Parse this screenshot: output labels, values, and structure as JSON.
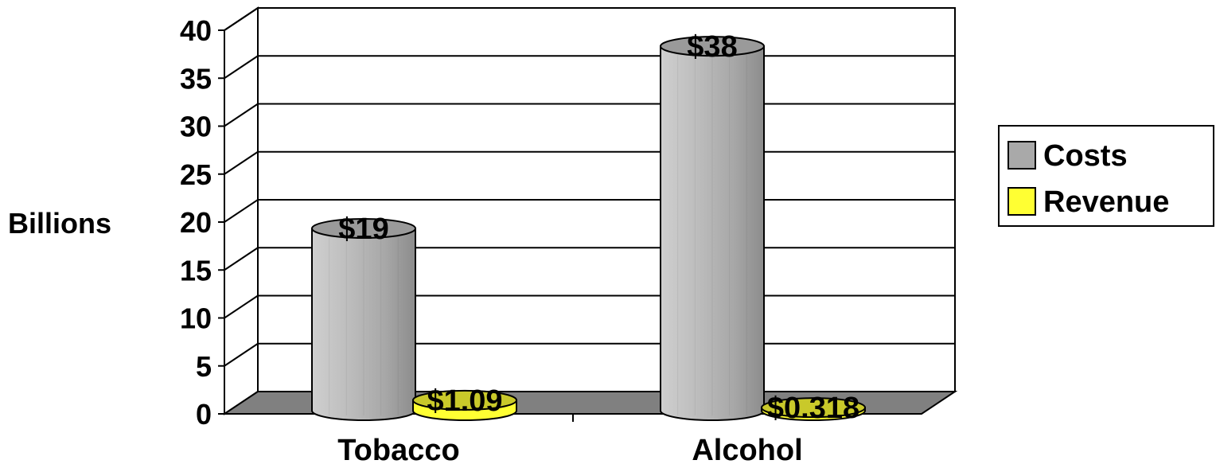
{
  "chart_data": {
    "type": "bar",
    "style": "3d-cylinder",
    "categories": [
      "Tobacco",
      "Alcohol"
    ],
    "series": [
      {
        "name": "Costs",
        "values": [
          19,
          38
        ],
        "labels": [
          "$19",
          "$38"
        ],
        "color": "#a9a9a9"
      },
      {
        "name": "Revenue",
        "values": [
          1.09,
          0.318
        ],
        "labels": [
          "$1.09",
          "$0.318"
        ],
        "color": "#ffff33"
      }
    ],
    "ylabel": "Billions",
    "ylim": [
      0,
      40
    ],
    "yticks": [
      0,
      5,
      10,
      15,
      20,
      25,
      30,
      35,
      40
    ],
    "grid": true,
    "legend": "right",
    "floor_color": "#808080",
    "wall_color": "#ffffff"
  }
}
